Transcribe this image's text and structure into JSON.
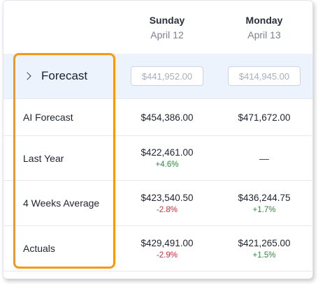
{
  "columns": [
    {
      "day": "Sunday",
      "date": "April 12"
    },
    {
      "day": "Monday",
      "date": "April 13"
    }
  ],
  "forecast_row": {
    "label": "Forecast",
    "inputs": [
      {
        "placeholder": "$441,952.00"
      },
      {
        "placeholder": "$414,945.00"
      }
    ]
  },
  "rows": {
    "ai_forecast": {
      "label": "AI Forecast",
      "cells": [
        {
          "value": "$454,386.00"
        },
        {
          "value": "$471,672.00"
        }
      ]
    },
    "last_year": {
      "label": "Last Year",
      "cells": [
        {
          "value": "$422,461.00",
          "delta": "+4.6%"
        },
        {
          "value": "—"
        }
      ]
    },
    "four_weeks_average": {
      "label": "4 Weeks Average",
      "cells": [
        {
          "value": "$423,540.50",
          "delta": "-2.8%"
        },
        {
          "value": "$436,244.75",
          "delta": "+1.7%"
        }
      ]
    },
    "actuals": {
      "label": "Actuals",
      "cells": [
        {
          "value": "$429,491.00",
          "delta": "-2.9%"
        },
        {
          "value": "$421,265.00",
          "delta": "+1.5%"
        }
      ]
    }
  },
  "colors": {
    "highlight": "#f39a12",
    "forecast_row_bg": "#edf3fd",
    "positive": "#2e8a3b",
    "negative": "#c8323c"
  }
}
